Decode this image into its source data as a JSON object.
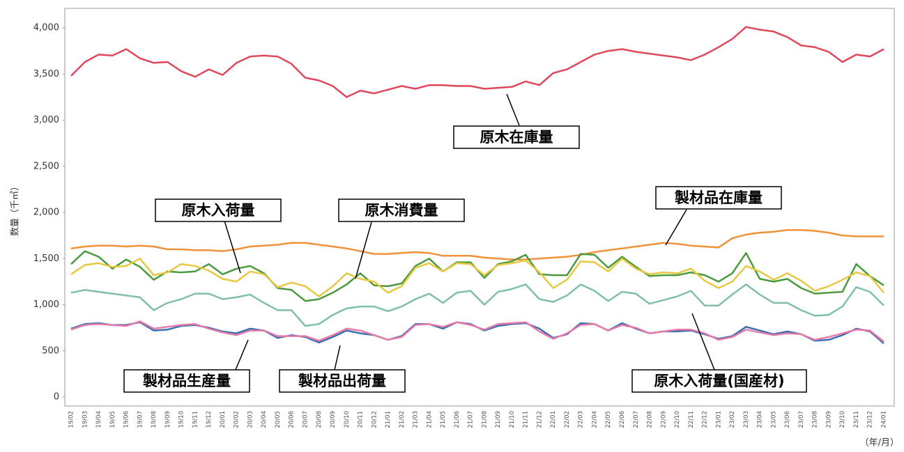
{
  "chart_data": {
    "type": "line",
    "y_label": "数量（千㎥）",
    "x_label": "（年/月）",
    "categories": [
      "19/02",
      "19/03",
      "19/04",
      "19/05",
      "19/06",
      "19/07",
      "19/08",
      "19/09",
      "19/10",
      "19/11",
      "19/12",
      "20/01",
      "20/02",
      "20/03",
      "20/04",
      "20/05",
      "20/06",
      "20/07",
      "20/08",
      "20/09",
      "20/10",
      "20/11",
      "20/12",
      "21/01",
      "21/02",
      "21/03",
      "21/04",
      "21/05",
      "21/06",
      "21/07",
      "21/08",
      "21/09",
      "21/10",
      "21/11",
      "21/12",
      "22/01",
      "22/02",
      "22/03",
      "22/04",
      "22/05",
      "22/06",
      "22/07",
      "22/08",
      "22/09",
      "22/10",
      "22/11",
      "22/12",
      "23/01",
      "23/02",
      "23/03",
      "23/04",
      "23/05",
      "23/06",
      "23/07",
      "23/08",
      "23/09",
      "23/10",
      "23/11",
      "23/12",
      "24/01"
    ],
    "ylim": [
      0,
      4000
    ],
    "yticks": [
      0,
      500,
      {
        "value": 1000,
        "label": "1,000"
      },
      {
        "value": 1500,
        "label": "1,500"
      },
      {
        "value": 2000,
        "label": "2,000"
      },
      {
        "value": 2500,
        "label": "2,500"
      },
      {
        "value": 3000,
        "label": "3,000"
      },
      {
        "value": 3500,
        "label": "3,500"
      },
      {
        "value": 4000,
        "label": "4,000"
      }
    ],
    "series": [
      {
        "name": "原木在庫量",
        "color": "#e0475a",
        "values": [
          3480,
          3630,
          3710,
          3700,
          3770,
          3670,
          3620,
          3630,
          3530,
          3470,
          3550,
          3490,
          3620,
          3690,
          3700,
          3690,
          3610,
          3460,
          3430,
          3370,
          3250,
          3320,
          3290,
          3330,
          3370,
          3340,
          3380,
          3380,
          3370,
          3370,
          3340,
          3350,
          3360,
          3420,
          3380,
          3510,
          3550,
          3630,
          3710,
          3750,
          3770,
          3740,
          3720,
          3700,
          3680,
          3650,
          3710,
          3790,
          3880,
          4010,
          3980,
          3960,
          3900,
          3810,
          3790,
          3740,
          3630,
          3710,
          3690,
          3770
        ]
      },
      {
        "name": "製材品在庫量",
        "color": "#f0923a",
        "values": [
          1610,
          1630,
          1640,
          1640,
          1630,
          1640,
          1630,
          1600,
          1600,
          1590,
          1590,
          1580,
          1600,
          1630,
          1640,
          1650,
          1670,
          1670,
          1650,
          1630,
          1610,
          1580,
          1550,
          1550,
          1560,
          1570,
          1560,
          1530,
          1530,
          1530,
          1510,
          1500,
          1490,
          1490,
          1500,
          1510,
          1520,
          1540,
          1570,
          1590,
          1610,
          1630,
          1650,
          1670,
          1660,
          1640,
          1630,
          1620,
          1720,
          1760,
          1780,
          1790,
          1810,
          1810,
          1800,
          1780,
          1750,
          1740,
          1740,
          1740
        ]
      },
      {
        "name": "原木入荷量(国産材)",
        "color": "#7fbfa8",
        "values": [
          1130,
          1160,
          1140,
          1120,
          1100,
          1080,
          940,
          1020,
          1060,
          1120,
          1120,
          1060,
          1080,
          1110,
          1020,
          940,
          940,
          770,
          790,
          890,
          960,
          980,
          980,
          930,
          980,
          1060,
          1120,
          1020,
          1130,
          1150,
          1000,
          1140,
          1170,
          1220,
          1060,
          1030,
          1100,
          1220,
          1150,
          1040,
          1140,
          1120,
          1010,
          1050,
          1090,
          1150,
          990,
          990,
          1110,
          1220,
          1110,
          1020,
          1020,
          940,
          880,
          890,
          980,
          1190,
          1140,
          990
        ]
      },
      {
        "name": "原木入荷量",
        "color": "#4a9a3e",
        "values": [
          1440,
          1580,
          1520,
          1390,
          1490,
          1410,
          1270,
          1360,
          1350,
          1360,
          1440,
          1330,
          1390,
          1420,
          1340,
          1180,
          1160,
          1040,
          1060,
          1130,
          1220,
          1340,
          1210,
          1200,
          1230,
          1420,
          1500,
          1360,
          1460,
          1460,
          1290,
          1440,
          1470,
          1540,
          1330,
          1320,
          1320,
          1550,
          1540,
          1400,
          1520,
          1410,
          1310,
          1320,
          1320,
          1350,
          1320,
          1250,
          1340,
          1560,
          1280,
          1250,
          1280,
          1180,
          1120,
          1130,
          1140,
          1440,
          1310,
          1210
        ]
      },
      {
        "name": "原木消費量",
        "color": "#e8c840",
        "values": [
          1330,
          1430,
          1450,
          1410,
          1420,
          1500,
          1320,
          1350,
          1440,
          1420,
          1370,
          1280,
          1250,
          1360,
          1330,
          1190,
          1240,
          1200,
          1090,
          1200,
          1340,
          1280,
          1250,
          1130,
          1200,
          1400,
          1450,
          1360,
          1450,
          1440,
          1320,
          1430,
          1450,
          1480,
          1350,
          1180,
          1270,
          1470,
          1460,
          1360,
          1500,
          1390,
          1330,
          1350,
          1340,
          1390,
          1260,
          1180,
          1250,
          1420,
          1360,
          1270,
          1340,
          1260,
          1150,
          1200,
          1270,
          1350,
          1310,
          1130
        ]
      },
      {
        "name": "製材品生産量",
        "color": "#3a6fb0",
        "values": [
          740,
          790,
          800,
          780,
          780,
          810,
          720,
          730,
          770,
          780,
          750,
          710,
          690,
          740,
          720,
          640,
          670,
          650,
          590,
          650,
          720,
          690,
          670,
          620,
          660,
          790,
          790,
          740,
          810,
          790,
          720,
          770,
          790,
          800,
          740,
          640,
          680,
          800,
          790,
          720,
          800,
          740,
          690,
          710,
          710,
          720,
          680,
          630,
          660,
          760,
          720,
          680,
          710,
          680,
          610,
          620,
          670,
          740,
          710,
          580
        ]
      },
      {
        "name": "製材品出荷量",
        "color": "#e87aa8",
        "values": [
          730,
          780,
          790,
          780,
          770,
          820,
          740,
          760,
          780,
          790,
          740,
          700,
          670,
          720,
          720,
          660,
          660,
          660,
          610,
          670,
          740,
          720,
          670,
          620,
          650,
          780,
          790,
          760,
          810,
          780,
          730,
          790,
          800,
          810,
          710,
          630,
          690,
          780,
          790,
          720,
          780,
          750,
          690,
          710,
          730,
          730,
          690,
          620,
          650,
          730,
          700,
          670,
          690,
          680,
          620,
          650,
          690,
          730,
          720,
          600
        ]
      }
    ]
  }
}
